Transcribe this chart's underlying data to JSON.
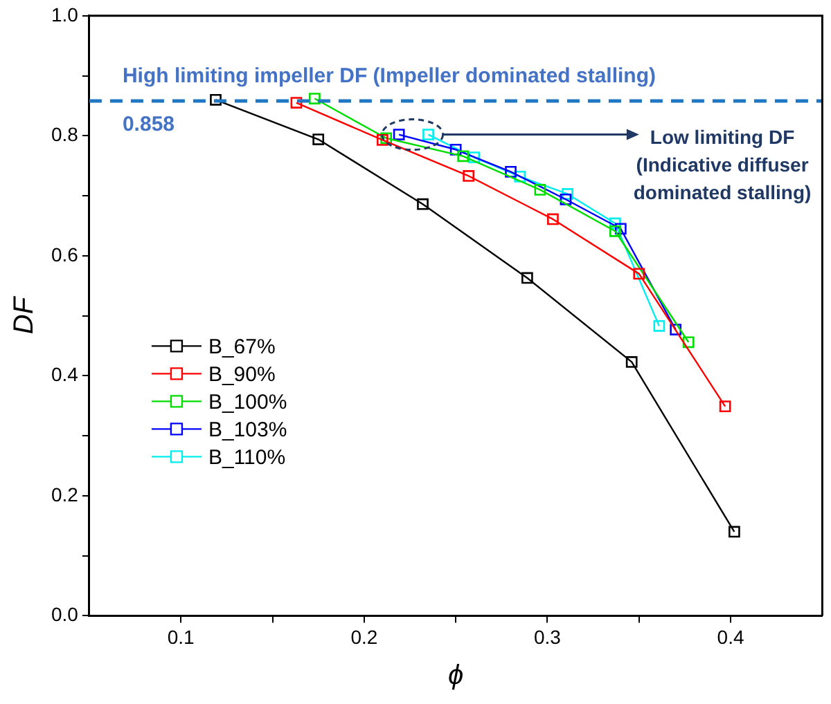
{
  "chart_data": {
    "type": "line",
    "xlabel": "ϕ",
    "ylabel": "DF",
    "xlim": [
      0.05,
      0.45
    ],
    "ylim": [
      0,
      1
    ],
    "xticks": [
      0.1,
      {
        "value": 0.15,
        "label": null
      },
      0.2,
      {
        "value": 0.25,
        "label": null
      },
      0.3,
      {
        "value": 0.35,
        "label": null
      },
      0.4
    ],
    "yticks": [
      "0.0",
      {
        "value": 0.1,
        "label": null
      },
      0.2,
      {
        "value": 0.3,
        "label": null
      },
      0.4,
      {
        "value": 0.5,
        "label": null
      },
      0.6,
      {
        "value": 0.7,
        "label": null
      },
      0.8,
      {
        "value": 0.9,
        "label": null
      },
      "1.0"
    ],
    "series": [
      {
        "name": "B_67%",
        "color": "#000000",
        "x": [
          0.119,
          0.175,
          0.232,
          0.289,
          0.346,
          0.402
        ],
        "values": [
          0.86,
          0.794,
          0.686,
          0.563,
          0.423,
          0.14
        ]
      },
      {
        "name": "B_90%",
        "color": "#ff0000",
        "x": [
          0.163,
          0.21,
          0.257,
          0.303,
          0.35,
          0.397
        ],
        "values": [
          0.855,
          0.793,
          0.733,
          0.661,
          0.57,
          0.349
        ]
      },
      {
        "name": "B_100%",
        "color": "#00dd00",
        "x": [
          0.173,
          0.212,
          0.254,
          0.296,
          0.337,
          0.377
        ],
        "values": [
          0.862,
          0.796,
          0.766,
          0.71,
          0.641,
          0.456
        ]
      },
      {
        "name": "B_103%",
        "color": "#0000ff",
        "x": [
          0.219,
          0.25,
          0.28,
          0.31,
          0.34,
          0.37
        ],
        "values": [
          0.802,
          0.777,
          0.74,
          0.694,
          0.645,
          0.477
        ]
      },
      {
        "name": "B_110%",
        "color": "#00eeee",
        "x": [
          0.235,
          0.26,
          0.285,
          0.311,
          0.337,
          0.361
        ],
        "values": [
          0.802,
          0.764,
          0.732,
          0.703,
          0.654,
          0.483
        ]
      }
    ],
    "ref_lines": [
      {
        "axis": "y",
        "value": 0.858,
        "label": "0.858",
        "color": "#1f77c4",
        "line_style": "dashed"
      }
    ],
    "annotations": [
      "High limiting impeller DF (Impeller dominated stalling)",
      {
        "text": "Low limiting DF\n(Indicative diffuser\ndominated stalling)",
        "x": 0.243,
        "y": 0.802
      }
    ],
    "marker": "square",
    "line_style": "solid",
    "legend": "bottom left",
    "grid": false
  }
}
